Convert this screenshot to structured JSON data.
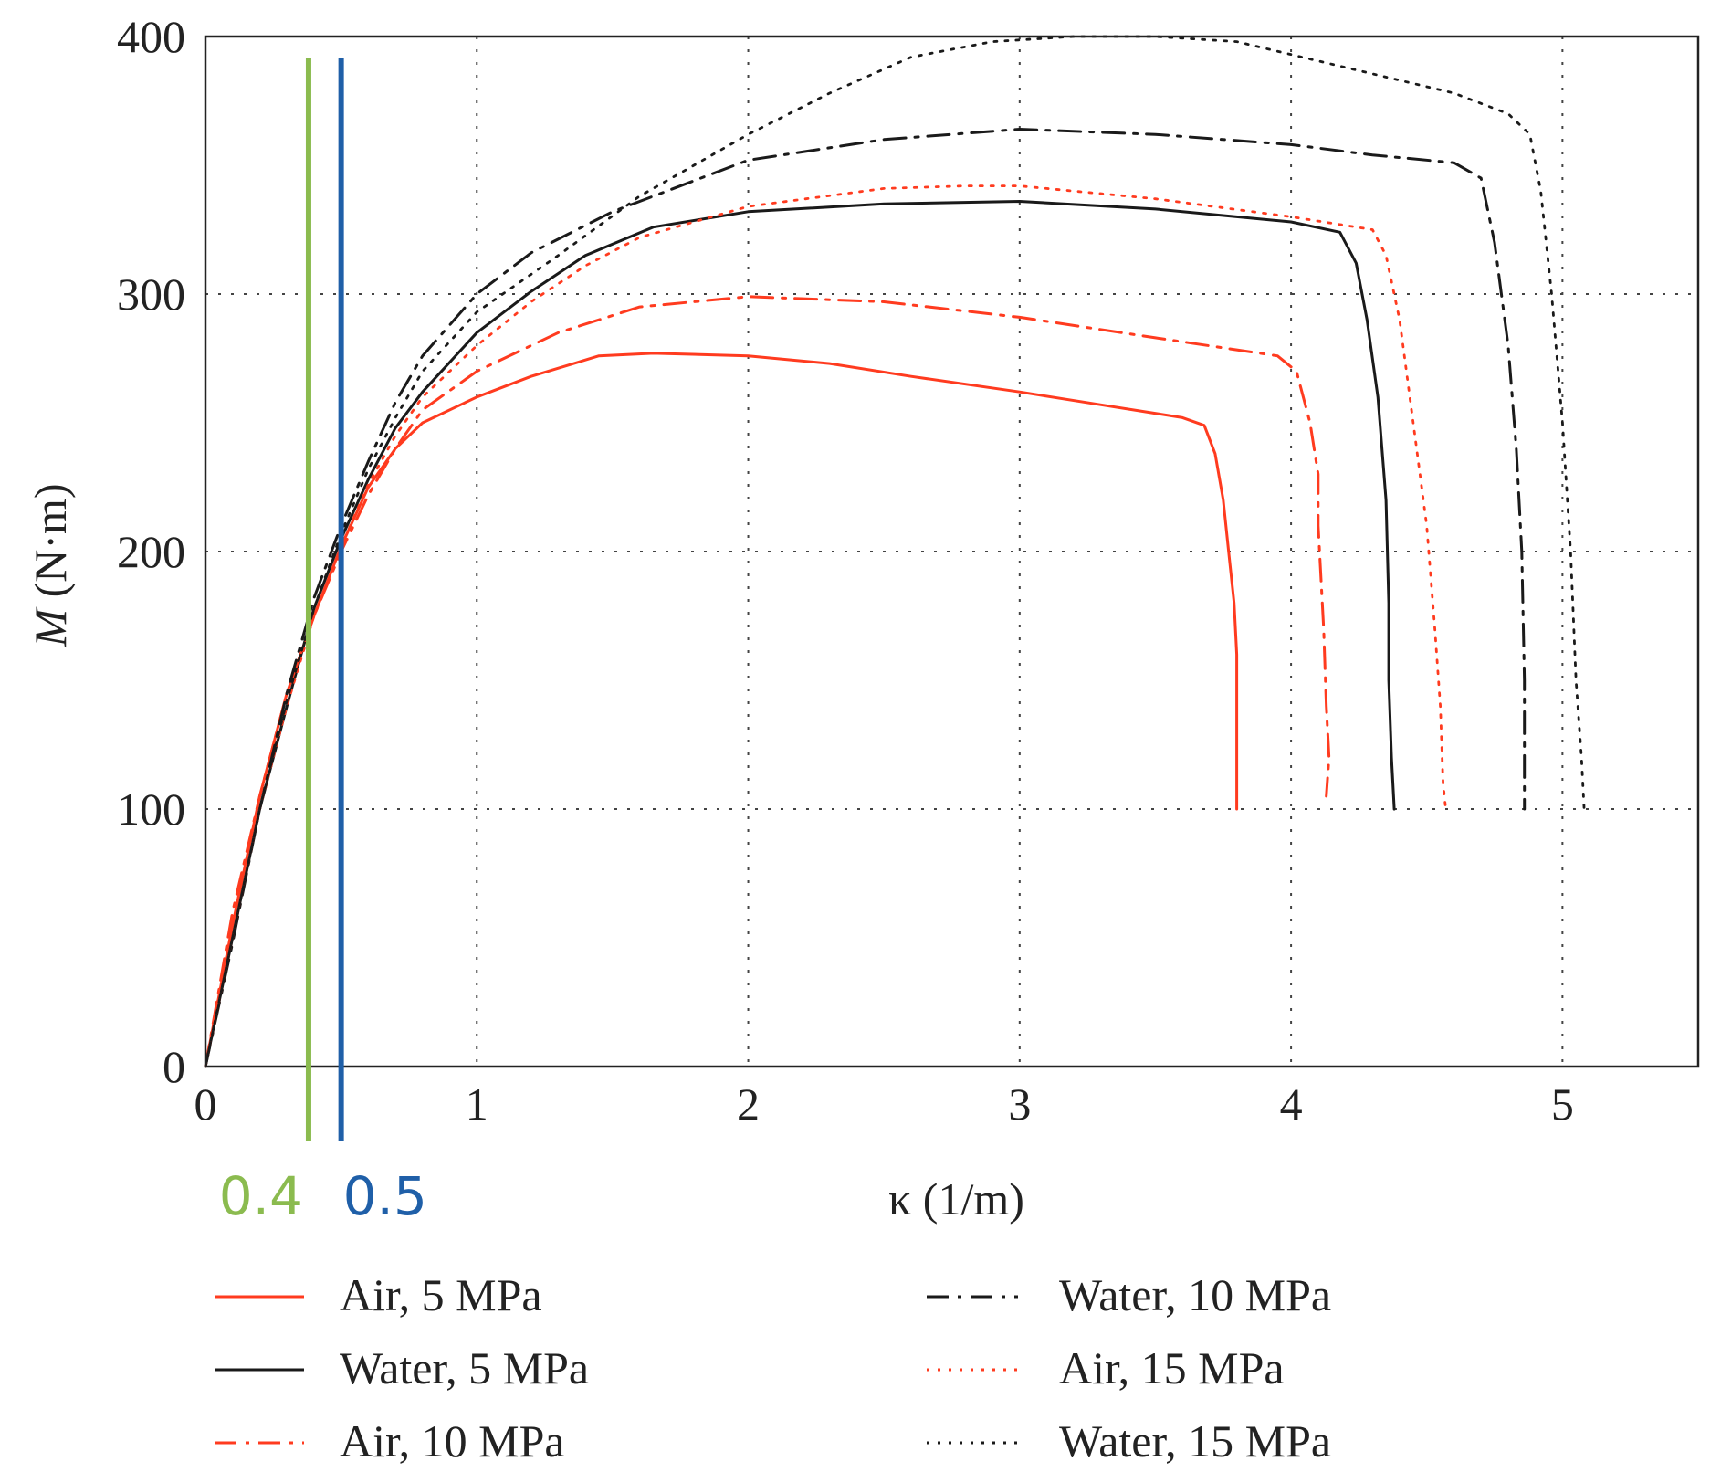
{
  "chart_data": {
    "type": "line",
    "title": "",
    "xlabel": "κ (1/m)",
    "ylabel_symbol": "M",
    "ylabel_unit": " (N·m)",
    "xlim": [
      0,
      5.5
    ],
    "ylim": [
      0,
      400
    ],
    "x_ticks": [
      0,
      1,
      2,
      3,
      4,
      5
    ],
    "y_ticks": [
      0,
      100,
      200,
      300,
      400
    ],
    "x_tick_labels": [
      "0",
      "1",
      "2",
      "3",
      "4",
      "5"
    ],
    "y_tick_labels": [
      "0",
      "100",
      "200",
      "300",
      "400"
    ],
    "grid": true,
    "grid_style": "dotted",
    "legend_position": "bottom",
    "series": [
      {
        "name": "Air, 5 MPa",
        "color": "#ff3b1f",
        "dash": "solid",
        "points": [
          [
            0,
            0
          ],
          [
            0.1,
            55
          ],
          [
            0.2,
            105
          ],
          [
            0.3,
            145
          ],
          [
            0.4,
            175
          ],
          [
            0.5,
            202
          ],
          [
            0.6,
            225
          ],
          [
            0.7,
            240
          ],
          [
            0.8,
            250
          ],
          [
            1.0,
            260
          ],
          [
            1.2,
            268
          ],
          [
            1.45,
            276
          ],
          [
            1.65,
            277
          ],
          [
            2.0,
            276
          ],
          [
            2.3,
            273
          ],
          [
            2.6,
            268
          ],
          [
            3.0,
            262
          ],
          [
            3.3,
            257
          ],
          [
            3.6,
            252
          ],
          [
            3.68,
            249
          ],
          [
            3.72,
            238
          ],
          [
            3.75,
            220
          ],
          [
            3.77,
            200
          ],
          [
            3.79,
            180
          ],
          [
            3.8,
            160
          ],
          [
            3.8,
            140
          ],
          [
            3.8,
            120
          ],
          [
            3.8,
            100
          ]
        ]
      },
      {
        "name": "Water, 5 MPa",
        "color": "#1a1a1a",
        "dash": "solid",
        "points": [
          [
            0,
            0
          ],
          [
            0.1,
            50
          ],
          [
            0.2,
            100
          ],
          [
            0.3,
            140
          ],
          [
            0.4,
            178
          ],
          [
            0.5,
            205
          ],
          [
            0.6,
            228
          ],
          [
            0.7,
            248
          ],
          [
            0.8,
            262
          ],
          [
            1.0,
            285
          ],
          [
            1.2,
            301
          ],
          [
            1.4,
            315
          ],
          [
            1.65,
            326
          ],
          [
            2.0,
            332
          ],
          [
            2.5,
            335
          ],
          [
            3.0,
            336
          ],
          [
            3.5,
            333
          ],
          [
            4.0,
            328
          ],
          [
            4.18,
            324
          ],
          [
            4.24,
            312
          ],
          [
            4.28,
            290
          ],
          [
            4.32,
            260
          ],
          [
            4.35,
            220
          ],
          [
            4.36,
            180
          ],
          [
            4.36,
            150
          ],
          [
            4.37,
            120
          ],
          [
            4.38,
            100
          ]
        ]
      },
      {
        "name": "Air, 10 MPa",
        "color": "#ff3b1f",
        "dash": "24 10 4 10",
        "points": [
          [
            0,
            0
          ],
          [
            0.05,
            30
          ],
          [
            0.1,
            60
          ],
          [
            0.2,
            105
          ],
          [
            0.3,
            145
          ],
          [
            0.4,
            175
          ],
          [
            0.5,
            200
          ],
          [
            0.6,
            222
          ],
          [
            0.7,
            240
          ],
          [
            0.8,
            255
          ],
          [
            1.0,
            270
          ],
          [
            1.3,
            285
          ],
          [
            1.6,
            295
          ],
          [
            2.0,
            299
          ],
          [
            2.5,
            297
          ],
          [
            3.0,
            291
          ],
          [
            3.5,
            283
          ],
          [
            3.95,
            276
          ],
          [
            4.02,
            270
          ],
          [
            4.07,
            250
          ],
          [
            4.1,
            230
          ],
          [
            4.1,
            210
          ],
          [
            4.12,
            170
          ],
          [
            4.13,
            140
          ],
          [
            4.14,
            120
          ],
          [
            4.13,
            105
          ]
        ]
      },
      {
        "name": "Water, 10 MPa",
        "color": "#1a1a1a",
        "dash": "24 10 4 10",
        "points": [
          [
            0,
            0
          ],
          [
            0.1,
            48
          ],
          [
            0.2,
            100
          ],
          [
            0.3,
            145
          ],
          [
            0.4,
            182
          ],
          [
            0.5,
            210
          ],
          [
            0.6,
            235
          ],
          [
            0.7,
            258
          ],
          [
            0.8,
            276
          ],
          [
            1.0,
            300
          ],
          [
            1.2,
            316
          ],
          [
            1.5,
            332
          ],
          [
            1.8,
            344
          ],
          [
            2.0,
            352
          ],
          [
            2.5,
            360
          ],
          [
            3.0,
            364
          ],
          [
            3.5,
            362
          ],
          [
            4.0,
            358
          ],
          [
            4.3,
            354
          ],
          [
            4.6,
            351
          ],
          [
            4.7,
            345
          ],
          [
            4.75,
            320
          ],
          [
            4.8,
            280
          ],
          [
            4.83,
            240
          ],
          [
            4.85,
            200
          ],
          [
            4.86,
            150
          ],
          [
            4.86,
            120
          ],
          [
            4.86,
            100
          ]
        ]
      },
      {
        "name": "Air, 15 MPa",
        "color": "#ff3b1f",
        "dash": "3 9",
        "points": [
          [
            0,
            0
          ],
          [
            0.1,
            50
          ],
          [
            0.2,
            100
          ],
          [
            0.3,
            140
          ],
          [
            0.4,
            175
          ],
          [
            0.5,
            202
          ],
          [
            0.6,
            226
          ],
          [
            0.7,
            245
          ],
          [
            0.8,
            260
          ],
          [
            1.0,
            280
          ],
          [
            1.2,
            297
          ],
          [
            1.4,
            311
          ],
          [
            1.6,
            322
          ],
          [
            2.0,
            334
          ],
          [
            2.5,
            341
          ],
          [
            2.8,
            342
          ],
          [
            3.0,
            342
          ],
          [
            3.5,
            337
          ],
          [
            4.0,
            330
          ],
          [
            4.3,
            325
          ],
          [
            4.35,
            315
          ],
          [
            4.4,
            290
          ],
          [
            4.45,
            250
          ],
          [
            4.5,
            210
          ],
          [
            4.53,
            170
          ],
          [
            4.55,
            140
          ],
          [
            4.56,
            110
          ],
          [
            4.57,
            100
          ]
        ]
      },
      {
        "name": "Water, 15 MPa",
        "color": "#1a1a1a",
        "dash": "3 9",
        "points": [
          [
            0,
            0
          ],
          [
            0.1,
            50
          ],
          [
            0.2,
            100
          ],
          [
            0.3,
            142
          ],
          [
            0.4,
            178
          ],
          [
            0.5,
            207
          ],
          [
            0.6,
            232
          ],
          [
            0.7,
            252
          ],
          [
            0.8,
            270
          ],
          [
            1.0,
            293
          ],
          [
            1.3,
            315
          ],
          [
            1.6,
            338
          ],
          [
            2.0,
            362
          ],
          [
            2.3,
            378
          ],
          [
            2.6,
            392
          ],
          [
            2.9,
            398
          ],
          [
            3.2,
            400
          ],
          [
            3.5,
            400
          ],
          [
            3.8,
            398
          ],
          [
            4.2,
            388
          ],
          [
            4.6,
            378
          ],
          [
            4.8,
            370
          ],
          [
            4.88,
            362
          ],
          [
            4.92,
            340
          ],
          [
            4.96,
            300
          ],
          [
            5.0,
            250
          ],
          [
            5.03,
            200
          ],
          [
            5.05,
            150
          ],
          [
            5.07,
            120
          ],
          [
            5.08,
            100
          ]
        ]
      }
    ],
    "reference_lines": [
      {
        "x": 0.38,
        "label": "0.4",
        "color": "#8bbb4f"
      },
      {
        "x": 0.5,
        "label": "0.5",
        "color": "#1f5fa8"
      }
    ],
    "legend": [
      {
        "label": "Air, 5 MPa",
        "series": 0
      },
      {
        "label": "Water, 5 MPa",
        "series": 1
      },
      {
        "label": "Air, 10 MPa",
        "series": 2
      },
      {
        "label": "Water, 10 MPa",
        "series": 3
      },
      {
        "label": "Air, 15 MPa",
        "series": 4
      },
      {
        "label": "Water, 15 MPa",
        "series": 5
      }
    ]
  }
}
